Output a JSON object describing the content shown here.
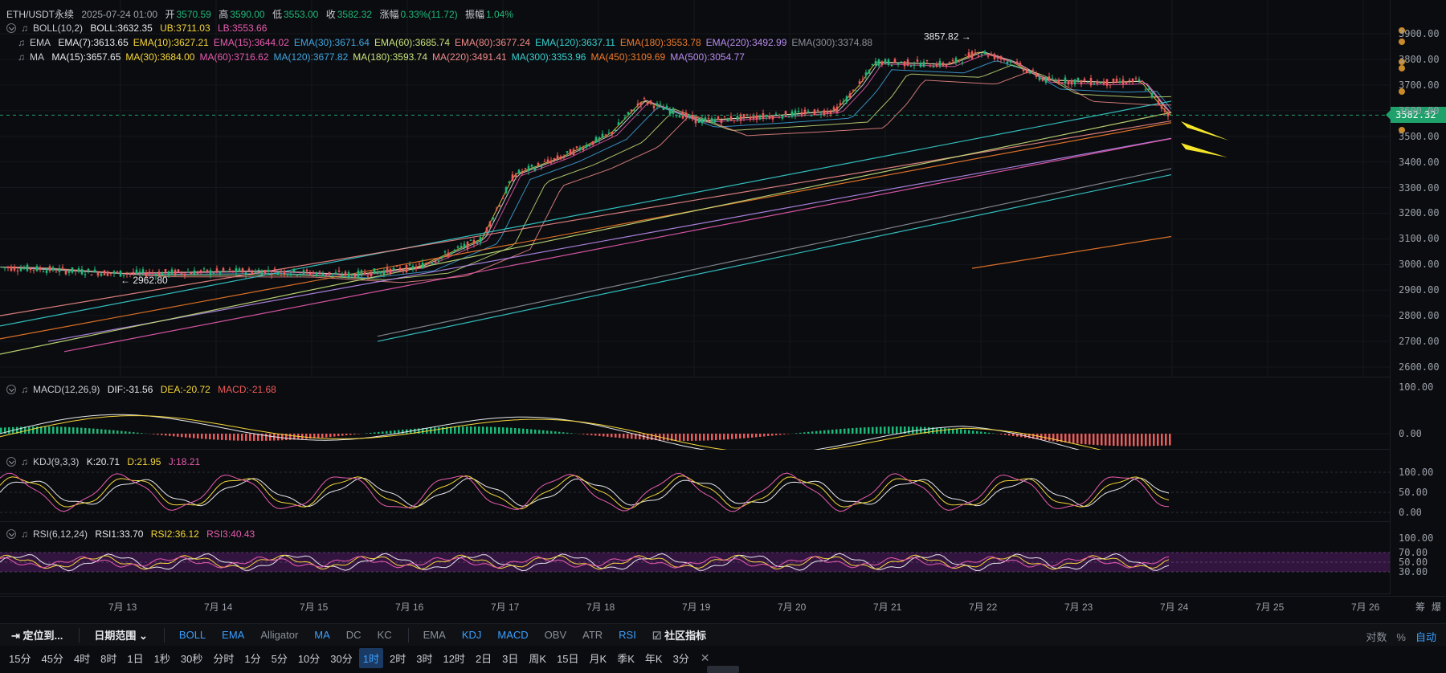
{
  "header": {
    "symbol": "ETH/USDT永续",
    "datetime": "2025-07-24 01:00",
    "open_label": "开",
    "open": "3570.59",
    "high_label": "高",
    "high": "3590.00",
    "low_label": "低",
    "low": "3553.00",
    "close_label": "收",
    "close": "3582.32",
    "change_label": "涨幅",
    "change": "0.33%(11.72)",
    "amp_label": "振幅",
    "amp": "1.04%"
  },
  "boll": {
    "name": "BOLL(10,2)",
    "mid": "BOLL:3632.35",
    "ub": "UB:3711.03",
    "lb": "LB:3553.66"
  },
  "ema": {
    "name": "EMA",
    "items": [
      "EMA(7):3613.65",
      "EMA(10):3627.21",
      "EMA(15):3644.02",
      "EMA(30):3671.64",
      "EMA(60):3685.74",
      "EMA(80):3677.24",
      "EMA(120):3637.11",
      "EMA(180):3553.78",
      "EMA(220):3492.99",
      "EMA(300):3374.88"
    ],
    "colors": [
      "#e6e8ec",
      "#f5d63a",
      "#e85bb0",
      "#3fa6e0",
      "#c8e27a",
      "#f08a8a",
      "#36d0d0",
      "#f07a2a",
      "#b88cf0",
      "#8a8f99"
    ]
  },
  "ma": {
    "name": "MA",
    "items": [
      "MA(15):3657.65",
      "MA(30):3684.00",
      "MA(60):3716.62",
      "MA(120):3677.82",
      "MA(180):3593.74",
      "MA(220):3491.41",
      "MA(300):3353.96",
      "MA(450):3109.69",
      "MA(500):3054.77"
    ],
    "colors": [
      "#e6e8ec",
      "#f5d63a",
      "#e85bb0",
      "#3fa6e0",
      "#c8e27a",
      "#f08a8a",
      "#36d0d0",
      "#f07a2a",
      "#b88cf0"
    ]
  },
  "annotations": {
    "high": "3857.82",
    "low": "2962.80"
  },
  "price_axis": {
    "ticks": [
      "3900.00",
      "3800.00",
      "3700.00",
      "3600.00",
      "3500.00",
      "3400.00",
      "3300.00",
      "3200.00",
      "3100.00",
      "3000.00",
      "2900.00",
      "2800.00",
      "2700.00",
      "2600.00"
    ],
    "current": "3582.32"
  },
  "macd": {
    "name": "MACD(12,26,9)",
    "dif": "DIF:-31.56",
    "dea": "DEA:-20.72",
    "macd": "MACD:-21.68",
    "ticks": [
      "100.00",
      "0.00"
    ]
  },
  "kdj": {
    "name": "KDJ(9,3,3)",
    "k": "K:20.71",
    "d": "D:21.95",
    "j": "J:18.21",
    "ticks": [
      "100.00",
      "50.00",
      "0.00"
    ]
  },
  "rsi": {
    "name": "RSI(6,12,24)",
    "r1": "RSI1:33.70",
    "r2": "RSI2:36.12",
    "r3": "RSI3:40.43",
    "ticks": [
      "100.00",
      "70.00",
      "50.00",
      "30.00"
    ]
  },
  "dates": [
    "7月 13",
    "7月 14",
    "7月 15",
    "7月 16",
    "7月 17",
    "7月 18",
    "7月 19",
    "7月 20",
    "7月 21",
    "7月 22",
    "7月 23",
    "7月 24",
    "7月 25",
    "7月 26"
  ],
  "corner": {
    "a": "筹",
    "b": "爆"
  },
  "toolbar": {
    "locate": "定位到...",
    "date_range": "日期范围",
    "main_indicators": [
      "BOLL",
      "EMA",
      "Alligator",
      "MA",
      "DC",
      "KC"
    ],
    "main_active": [
      true,
      true,
      false,
      true,
      false,
      false
    ],
    "sub_indicators": [
      "EMA",
      "KDJ",
      "MACD",
      "OBV",
      "ATR",
      "RSI"
    ],
    "sub_active": [
      false,
      true,
      true,
      false,
      false,
      true
    ],
    "community": "社区指标",
    "right": [
      "对数",
      "%",
      "自动"
    ]
  },
  "intervals": {
    "items": [
      "15分",
      "45分",
      "4时",
      "8时",
      "1日",
      "1秒",
      "30秒",
      "分时",
      "1分",
      "5分",
      "10分",
      "30分",
      "1时",
      "2时",
      "3时",
      "12时",
      "2日",
      "3日",
      "周K",
      "15日",
      "月K",
      "季K",
      "年K",
      "3分"
    ],
    "active": "1时"
  }
}
